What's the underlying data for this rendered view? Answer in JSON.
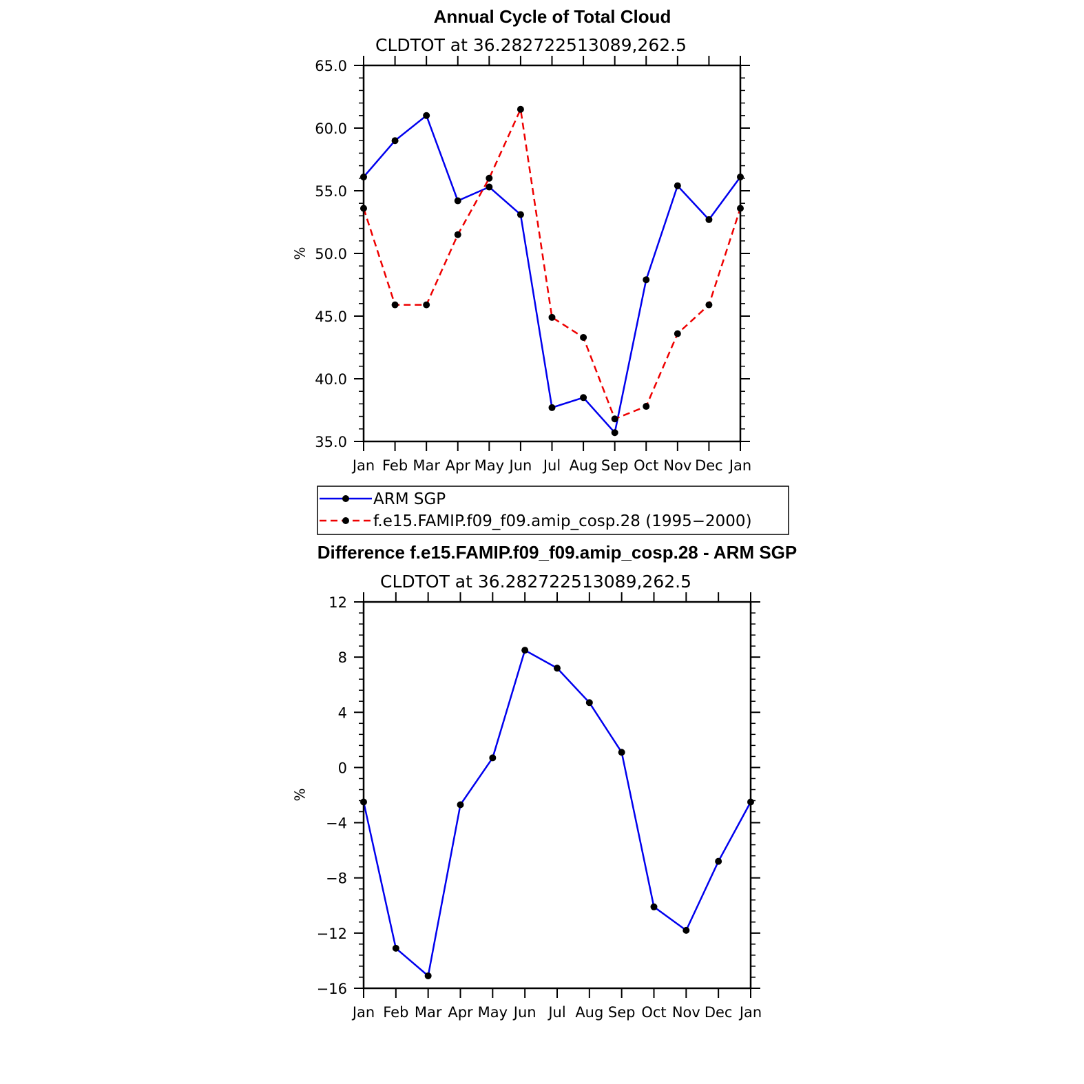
{
  "chart_data": [
    {
      "type": "line",
      "title": "Annual Cycle of Total Cloud",
      "subtitle": "CLDTOT at 36.282722513089,262.5",
      "ylabel": "%",
      "ylim": [
        35,
        65
      ],
      "yticks": [
        "35.0",
        "40.0",
        "45.0",
        "50.0",
        "55.0",
        "60.0",
        "65.0"
      ],
      "yticks_values": [
        35,
        40,
        45,
        50,
        55,
        60,
        65
      ],
      "categories": [
        "Jan",
        "Feb",
        "Mar",
        "Apr",
        "May",
        "Jun",
        "Jul",
        "Aug",
        "Sep",
        "Oct",
        "Nov",
        "Dec",
        "Jan"
      ],
      "series": [
        {
          "name": "ARM SGP",
          "color": "#0000ee",
          "dash": "solid",
          "values": [
            56.1,
            59.0,
            61.0,
            54.2,
            55.3,
            53.1,
            37.7,
            38.5,
            35.7,
            47.9,
            55.4,
            52.7,
            56.1
          ]
        },
        {
          "name": "f.e15.FAMIP.f09_f09.amip_cosp.28 (1995−2000)",
          "color": "#ee0000",
          "dash": "dashed",
          "values": [
            53.6,
            45.9,
            45.9,
            51.5,
            56.0,
            61.5,
            44.9,
            43.3,
            36.8,
            37.8,
            43.6,
            45.9,
            53.6
          ]
        }
      ],
      "legend": "below"
    },
    {
      "type": "line",
      "title": "Difference f.e15.FAMIP.f09_f09.amip_cosp.28 - ARM SGP",
      "subtitle": "CLDTOT at 36.282722513089,262.5",
      "ylabel": "%",
      "ylim": [
        -16,
        12
      ],
      "yticks": [
        "−16",
        "−12",
        "−8",
        "−4",
        "0",
        "4",
        "8",
        "12"
      ],
      "yticks_values": [
        -16,
        -12,
        -8,
        -4,
        0,
        4,
        8,
        12
      ],
      "categories": [
        "Jan",
        "Feb",
        "Mar",
        "Apr",
        "May",
        "Jun",
        "Jul",
        "Aug",
        "Sep",
        "Oct",
        "Nov",
        "Dec",
        "Jan"
      ],
      "series": [
        {
          "color": "#0000ee",
          "dash": "solid",
          "values": [
            -2.5,
            -13.1,
            -15.1,
            -2.7,
            0.7,
            8.5,
            7.2,
            4.7,
            1.1,
            -10.1,
            -11.8,
            -6.8,
            -2.5
          ]
        }
      ]
    }
  ]
}
